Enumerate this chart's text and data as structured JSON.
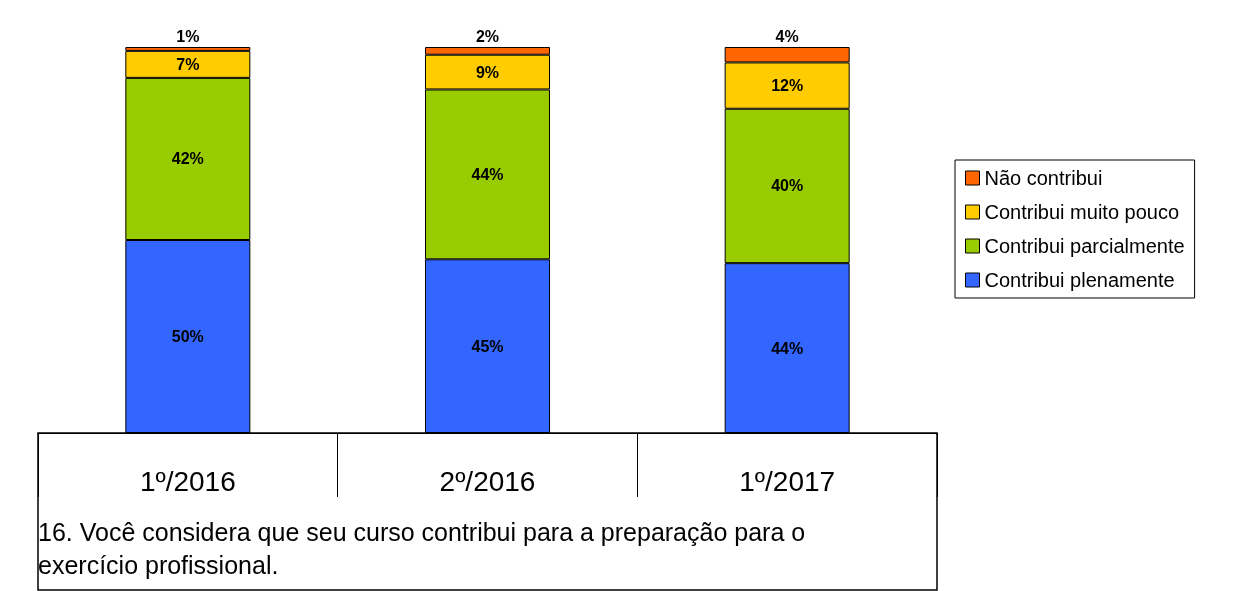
{
  "chart_data": {
    "type": "bar",
    "stacked": true,
    "categories": [
      "1º/2016",
      "2º/2016",
      "1º/2017"
    ],
    "xlabel": "16. Você considera que seu curso contribui para a preparação para o exercício profissional.",
    "tick_labels": "x",
    "legend": "right",
    "series": [
      {
        "name": "Contribui plenamente",
        "color": "#3366ff",
        "values": [
          50,
          45,
          44
        ],
        "value_labels": [
          "50%",
          "45%",
          "44%"
        ]
      },
      {
        "name": "Contribui parcialmente",
        "color": "#99cc00",
        "values": [
          42,
          44,
          40
        ],
        "value_labels": [
          "42%",
          "44%",
          "40%"
        ]
      },
      {
        "name": "Contribui muito pouco",
        "color": "#ffcc00",
        "values": [
          7,
          9,
          12
        ],
        "value_labels": [
          "7%",
          "9%",
          "12%"
        ]
      },
      {
        "name": "Não contribui",
        "color": "#ff6600",
        "values": [
          1,
          2,
          4
        ],
        "value_labels": [
          "1%",
          "2%",
          "4%"
        ]
      }
    ]
  }
}
